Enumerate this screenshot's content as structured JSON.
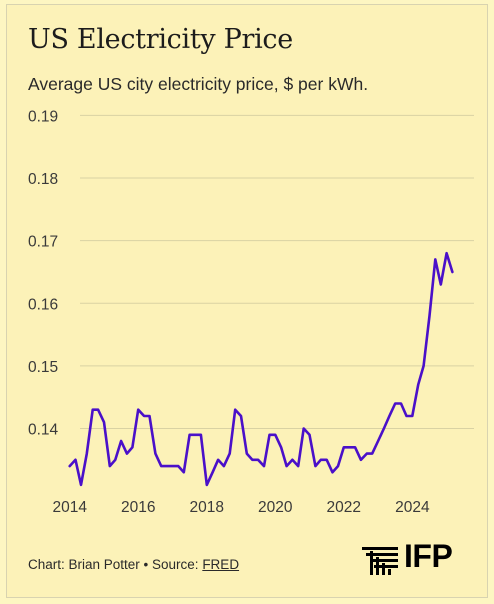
{
  "chart_data": {
    "type": "line",
    "title": "US Electricity Price",
    "subtitle": "Average US city electricity price, $ per kWh.",
    "xlabel": "",
    "ylabel": "",
    "xlim": [
      2013.6,
      2025.8
    ],
    "ylim": [
      0.1305,
      0.1915
    ],
    "x_ticks": [
      "2014",
      "2016",
      "2018",
      "2020",
      "2022",
      "2024"
    ],
    "y_ticks": [
      "0.14",
      "0.15",
      "0.16",
      "0.17",
      "0.18",
      "0.19"
    ],
    "grid": true,
    "series": [
      {
        "color": "#4a10c9",
        "points": [
          [
            2014.0,
            0.134
          ],
          [
            2014.17,
            0.135
          ],
          [
            2014.33,
            0.131
          ],
          [
            2014.5,
            0.136
          ],
          [
            2014.67,
            0.143
          ],
          [
            2014.83,
            0.143
          ],
          [
            2015.0,
            0.141
          ],
          [
            2015.17,
            0.134
          ],
          [
            2015.33,
            0.135
          ],
          [
            2015.5,
            0.138
          ],
          [
            2015.67,
            0.136
          ],
          [
            2015.83,
            0.137
          ],
          [
            2016.0,
            0.143
          ],
          [
            2016.17,
            0.142
          ],
          [
            2016.33,
            0.142
          ],
          [
            2016.5,
            0.136
          ],
          [
            2016.67,
            0.134
          ],
          [
            2016.83,
            0.134
          ],
          [
            2017.0,
            0.134
          ],
          [
            2017.17,
            0.134
          ],
          [
            2017.33,
            0.133
          ],
          [
            2017.5,
            0.139
          ],
          [
            2017.67,
            0.139
          ],
          [
            2017.83,
            0.139
          ],
          [
            2018.0,
            0.131
          ],
          [
            2018.17,
            0.133
          ],
          [
            2018.33,
            0.135
          ],
          [
            2018.5,
            0.134
          ],
          [
            2018.67,
            0.136
          ],
          [
            2018.83,
            0.143
          ],
          [
            2019.0,
            0.142
          ],
          [
            2019.17,
            0.136
          ],
          [
            2019.33,
            0.135
          ],
          [
            2019.5,
            0.135
          ],
          [
            2019.67,
            0.134
          ],
          [
            2019.83,
            0.139
          ],
          [
            2020.0,
            0.139
          ],
          [
            2020.17,
            0.137
          ],
          [
            2020.33,
            0.134
          ],
          [
            2020.5,
            0.135
          ],
          [
            2020.67,
            0.134
          ],
          [
            2020.83,
            0.14
          ],
          [
            2021.0,
            0.139
          ],
          [
            2021.17,
            0.134
          ],
          [
            2021.33,
            0.135
          ],
          [
            2021.5,
            0.135
          ],
          [
            2021.67,
            0.133
          ],
          [
            2021.83,
            0.134
          ],
          [
            2022.0,
            0.137
          ],
          [
            2022.17,
            0.137
          ],
          [
            2022.33,
            0.137
          ],
          [
            2022.5,
            0.135
          ],
          [
            2022.67,
            0.136
          ],
          [
            2022.83,
            0.136
          ],
          [
            2023.0,
            0.138
          ],
          [
            2023.17,
            0.14
          ],
          [
            2023.33,
            0.142
          ],
          [
            2023.5,
            0.144
          ],
          [
            2023.67,
            0.144
          ],
          [
            2023.83,
            0.142
          ],
          [
            2024.0,
            0.142
          ],
          [
            2024.17,
            0.147
          ],
          [
            2024.33,
            0.15
          ],
          [
            2024.5,
            0.158
          ],
          [
            2024.67,
            0.167
          ],
          [
            2024.83,
            0.163
          ],
          [
            2025.0,
            0.168
          ],
          [
            2025.17,
            0.165
          ]
        ]
      }
    ]
  },
  "footer": {
    "credit": "Chart: Brian Potter • Source: ",
    "source_link": "FRED"
  },
  "logo": {
    "icon": "ifp-stripes-logo-icon",
    "text": "IFP"
  }
}
